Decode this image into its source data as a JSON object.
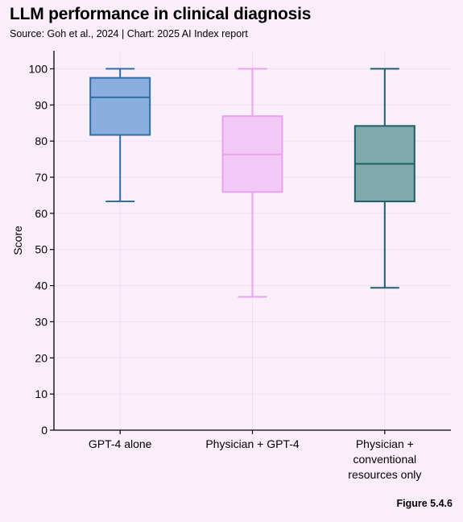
{
  "header": {
    "title": "LLM performance in clinical diagnosis",
    "subtitle": "Source: Goh et al., 2024 | Chart: 2025 AI Index report"
  },
  "footer": {
    "figure_label": "Figure 5.4.6"
  },
  "chart_data": {
    "type": "box",
    "ylabel": "Score",
    "xlabel": "",
    "ylim": [
      0,
      105
    ],
    "yticks": [
      0,
      10,
      20,
      30,
      40,
      50,
      60,
      70,
      80,
      90,
      100
    ],
    "grid": true,
    "categories": [
      [
        "GPT-4 alone"
      ],
      [
        "Physician + GPT-4"
      ],
      [
        "Physician +",
        "conventional",
        "resources only"
      ]
    ],
    "series": [
      {
        "min": 63.3,
        "q1": 81.7,
        "median": 92.1,
        "q3": 97.5,
        "max": 100,
        "color": "#8aaede",
        "edge": "#2e6fa8"
      },
      {
        "min": 36.9,
        "q1": 65.9,
        "median": 76.3,
        "q3": 86.9,
        "max": 100,
        "color": "#f1c8f6",
        "edge": "#e9a2ee"
      },
      {
        "min": 39.4,
        "q1": 63.3,
        "median": 73.7,
        "q3": 84.2,
        "max": 100,
        "color": "#80a9ae",
        "edge": "#1f5f66"
      }
    ]
  }
}
